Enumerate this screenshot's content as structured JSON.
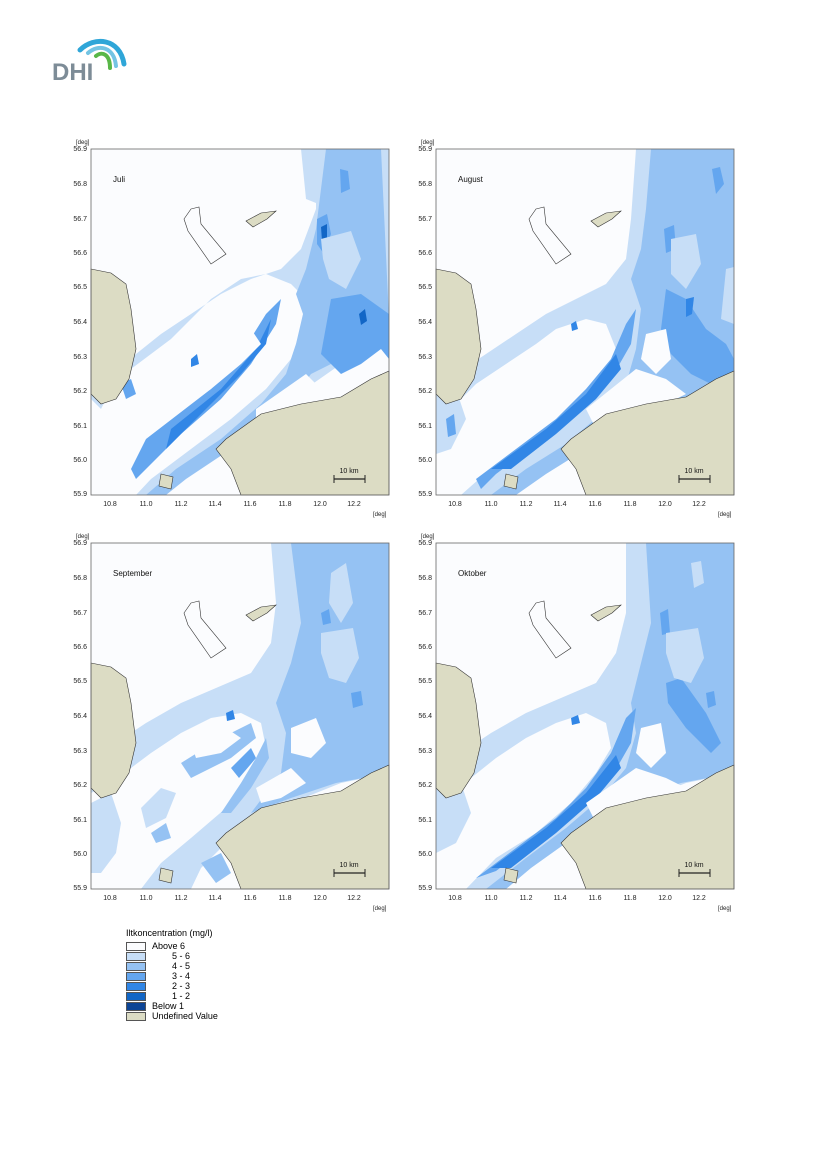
{
  "logo": {
    "text": "DHI"
  },
  "axis": {
    "unit": "[deg]",
    "y_ticks": [
      "56.9",
      "56.8",
      "56.7",
      "56.6",
      "56.5",
      "56.4",
      "56.3",
      "56.2",
      "56.1",
      "56.0",
      "55.9"
    ],
    "x_ticks": [
      "10.8",
      "11.0",
      "11.2",
      "11.4",
      "11.6",
      "11.8",
      "12.0",
      "12.2"
    ]
  },
  "scale_bar": "10 km",
  "maps": [
    {
      "month": "Juli"
    },
    {
      "month": "August"
    },
    {
      "month": "September"
    },
    {
      "month": "Oktober"
    }
  ],
  "legend": {
    "title": "Iltkoncentration (mg/l)",
    "items": [
      {
        "label": "Above 6",
        "color": "#fbfcfe"
      },
      {
        "label": "5 - 6",
        "color": "#c7def7"
      },
      {
        "label": "4 - 5",
        "color": "#95c2f3"
      },
      {
        "label": "3 - 4",
        "color": "#64a6ef"
      },
      {
        "label": "2 - 3",
        "color": "#3186e6"
      },
      {
        "label": "1 - 2",
        "color": "#1266c6"
      },
      {
        "label": "Below 1",
        "color": "#0c4495"
      },
      {
        "label": "Undefined Value",
        "color": "#dcdcc4"
      }
    ]
  }
}
